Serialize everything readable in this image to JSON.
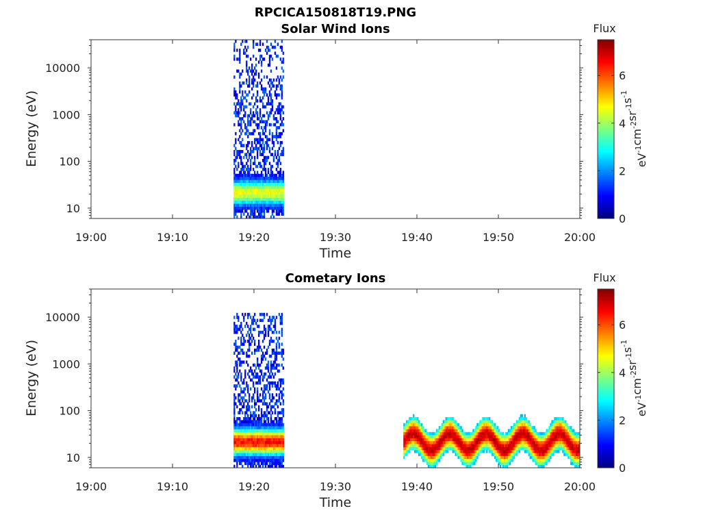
{
  "figure": {
    "main_title": "RPCICA150818T19.PNG"
  },
  "colormap": {
    "name": "jet",
    "stops": [
      "#00007f",
      "#0000ff",
      "#007fff",
      "#00ffff",
      "#7fff7f",
      "#ffff00",
      "#ff7f00",
      "#ff0000",
      "#7f0000"
    ]
  },
  "chart_data": [
    {
      "type": "heatmap",
      "title": "Solar Wind Ions",
      "xlabel": "Time",
      "ylabel": "Energy (eV)",
      "y_scale": "log",
      "xlim": [
        "19:00",
        "20:00"
      ],
      "x_ticks": [
        "19:00",
        "19:10",
        "19:20",
        "19:30",
        "19:40",
        "19:50",
        "20:00"
      ],
      "ylim": [
        6,
        40000
      ],
      "y_ticks": [
        10,
        100,
        1000,
        10000
      ],
      "y_tick_labels": [
        "10",
        "100",
        "1000",
        "10000"
      ],
      "colorbar": {
        "title": "Flux",
        "label_parts": [
          "eV",
          "-1",
          "cm",
          "-2",
          "sr",
          "-1",
          "s",
          "-1"
        ],
        "range": [
          0,
          7.5
        ],
        "ticks": [
          0,
          2,
          4,
          6
        ]
      },
      "regions": [
        {
          "t_start": "19:17:30",
          "t_end": "19:23:40",
          "energy_min": 6,
          "energy_max": 40000,
          "peak_flux": 4.5,
          "peak_energy": 20,
          "description_hidden": false
        }
      ]
    },
    {
      "type": "heatmap",
      "title": "Cometary Ions",
      "xlabel": "Time",
      "ylabel": "Energy (eV)",
      "y_scale": "log",
      "xlim": [
        "19:00",
        "20:00"
      ],
      "x_ticks": [
        "19:00",
        "19:10",
        "19:20",
        "19:30",
        "19:40",
        "19:50",
        "20:00"
      ],
      "ylim": [
        6,
        40000
      ],
      "y_ticks": [
        10,
        100,
        1000,
        10000
      ],
      "y_tick_labels": [
        "10",
        "100",
        "1000",
        "10000"
      ],
      "colorbar": {
        "title": "Flux",
        "label_parts": [
          "eV",
          "-1",
          "cm",
          "-2",
          "sr",
          "-1",
          "s",
          "-1"
        ],
        "range": [
          0,
          7.5
        ],
        "ticks": [
          0,
          2,
          4,
          6
        ]
      },
      "regions": [
        {
          "t_start": "19:17:30",
          "t_end": "19:23:40",
          "energy_min": 6,
          "energy_max": 11000,
          "peak_flux": 6.5,
          "peak_energy": 20
        },
        {
          "t_start": "19:38:20",
          "t_end": "20:00:00",
          "energy_min": 6,
          "energy_max": 80,
          "peak_flux": 7.0,
          "peak_energy": 20
        }
      ]
    }
  ]
}
